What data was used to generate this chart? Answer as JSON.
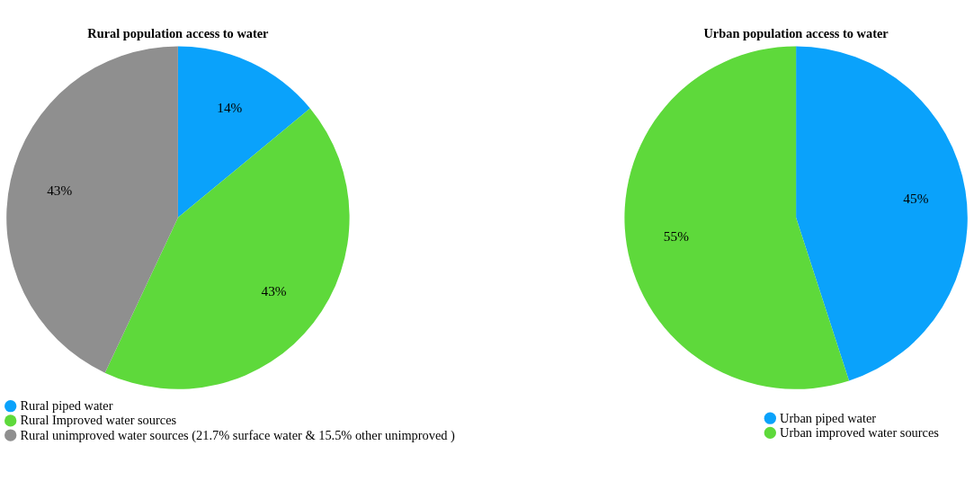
{
  "chart_data": [
    {
      "type": "pie",
      "title": "Rural population access to water",
      "categories": [
        "Rural piped water",
        "Rural Improved water sources",
        "Rural unimproved water sources (21.7% surface water & 15.5% other unimproved )"
      ],
      "values": [
        14,
        43,
        43
      ],
      "colors": [
        "#0aa2fb",
        "#5ed93b",
        "#8f8f8f"
      ],
      "value_labels": [
        "14%",
        "43%",
        "43%"
      ],
      "legend": "bottom"
    },
    {
      "type": "pie",
      "title": "Urban population access to water",
      "categories": [
        "Urban piped water",
        "Urban improved water sources"
      ],
      "values": [
        45,
        55
      ],
      "colors": [
        "#0aa2fb",
        "#5ed93b"
      ],
      "value_labels": [
        "45%",
        "55%"
      ],
      "legend": "bottom right"
    }
  ]
}
